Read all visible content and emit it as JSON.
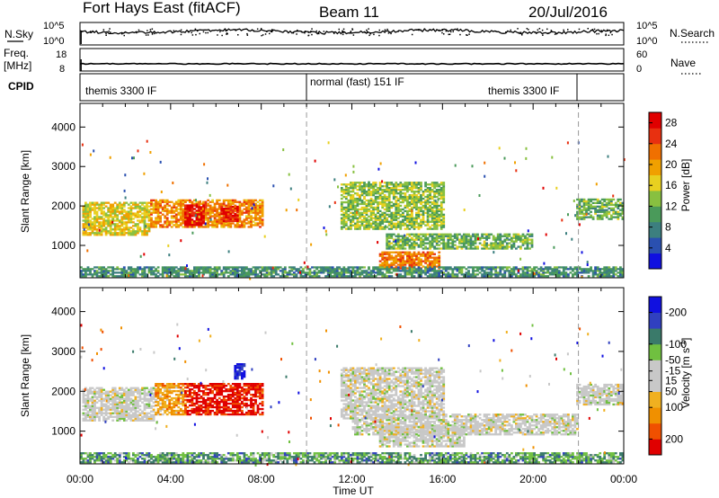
{
  "header": {
    "radar": "Fort Hays East (fitACF)",
    "beam": "Beam 11",
    "date": "20/Jul/2016"
  },
  "noise_panel": {
    "left_label": "N.Sky",
    "right_label": "N.Search",
    "left_ticks": [
      "10^5",
      "10^0"
    ],
    "right_ticks": [
      "10^5",
      "10^0"
    ]
  },
  "freq_panel": {
    "left_label_1": "Freq.",
    "left_label_2": "[MHz]",
    "right_label": "Nave",
    "left_ticks": [
      "18",
      "8"
    ],
    "right_ticks": [
      "60",
      "0"
    ]
  },
  "cpid_panel": {
    "label": "CPID",
    "modes": [
      "themis 3300 IF",
      "normal (fast) 151 IF",
      "themis 3300 IF"
    ]
  },
  "colors": {
    "power_scale": [
      "#1010e0",
      "#2a50b0",
      "#3c7f7f",
      "#4a9a5a",
      "#88c040",
      "#e8d020",
      "#f0a000",
      "#f07000",
      "#e83010",
      "#e00000"
    ],
    "velocity_scale": [
      "#1010e0",
      "#3040c0",
      "#3a7a6a",
      "#70c040",
      "#c8c8c8",
      "#c8c8c8",
      "#f0b020",
      "#f09000",
      "#f05000",
      "#e00000"
    ]
  },
  "chart_data": [
    {
      "type": "heatmap",
      "name": "power",
      "xlabel": "",
      "ylabel": "Slant Range [km]",
      "x_ticks": [
        "00:00",
        "04:00",
        "08:00",
        "12:00",
        "16:00",
        "20:00",
        "00:00"
      ],
      "y_ticks": [
        "1000",
        "2000",
        "3000",
        "4000"
      ],
      "xlim": [
        0,
        24
      ],
      "ylim": [
        180,
        4600
      ],
      "colorbar_label": "Power [dB]",
      "colorbar_ticks": [
        "4",
        "8",
        "12",
        "16",
        "20",
        "24",
        "28"
      ],
      "colorbar_range": [
        0,
        30
      ],
      "mode_change_times_hr": [
        10,
        22
      ],
      "echo_regions": [
        {
          "t0": 0.1,
          "t1": 3.1,
          "r0": 1250,
          "r1": 2100,
          "level": 0.55
        },
        {
          "t0": 3.1,
          "t1": 8.0,
          "r0": 1450,
          "r1": 2150,
          "level": 0.7
        },
        {
          "t0": 4.6,
          "t1": 5.4,
          "r0": 1500,
          "r1": 2000,
          "level": 0.95
        },
        {
          "t0": 6.2,
          "t1": 6.9,
          "r0": 1600,
          "r1": 2000,
          "level": 0.9
        },
        {
          "t0": 13.2,
          "t1": 15.8,
          "r0": 400,
          "r1": 850,
          "level": 0.75
        },
        {
          "t0": 13.5,
          "t1": 20.0,
          "r0": 900,
          "r1": 1300,
          "level": 0.4
        },
        {
          "t0": 11.5,
          "t1": 16.0,
          "r0": 1400,
          "r1": 2600,
          "level": 0.45
        },
        {
          "t0": 21.9,
          "t1": 24.0,
          "r0": 1650,
          "r1": 2150,
          "level": 0.4
        },
        {
          "t0": 0.0,
          "t1": 24.0,
          "r0": 200,
          "r1": 450,
          "level": 0.3
        }
      ]
    },
    {
      "type": "heatmap",
      "name": "velocity",
      "xlabel": "Time UT",
      "ylabel": "Slant Range [km]",
      "x_ticks": [
        "00:00",
        "04:00",
        "08:00",
        "12:00",
        "16:00",
        "20:00",
        "00:00"
      ],
      "y_ticks": [
        "1000",
        "2000",
        "3000",
        "4000"
      ],
      "xlim": [
        0,
        24
      ],
      "ylim": [
        180,
        4600
      ],
      "colorbar_label": "Velocity [m s^-1]",
      "colorbar_ticks": [
        "200",
        "100",
        "50",
        "15",
        "-15",
        "-50",
        "-100",
        "-200"
      ],
      "colorbar_range": [
        -250,
        250
      ],
      "mode_change_times_hr": [
        10,
        22
      ],
      "echo_regions": [
        {
          "t0": 0.1,
          "t1": 3.3,
          "r0": 1250,
          "r1": 2100,
          "level": 0.5
        },
        {
          "t0": 3.3,
          "t1": 4.6,
          "r0": 1400,
          "r1": 2200,
          "level": 0.3
        },
        {
          "t0": 4.6,
          "t1": 8.0,
          "r0": 1400,
          "r1": 2200,
          "level": 0.05
        },
        {
          "t0": 6.8,
          "t1": 7.2,
          "r0": 2300,
          "r1": 2700,
          "level": 0.95
        },
        {
          "t0": 11.5,
          "t1": 16.0,
          "r0": 1300,
          "r1": 2600,
          "level": 0.5
        },
        {
          "t0": 13.2,
          "t1": 17.0,
          "r0": 600,
          "r1": 1100,
          "level": 0.5
        },
        {
          "t0": 12.0,
          "t1": 22.0,
          "r0": 900,
          "r1": 1400,
          "level": 0.5
        },
        {
          "t0": 21.9,
          "t1": 24.0,
          "r0": 1650,
          "r1": 2150,
          "level": 0.5
        },
        {
          "t0": 0.0,
          "t1": 24.0,
          "r0": 200,
          "r1": 450,
          "level": 0.7
        }
      ]
    }
  ]
}
